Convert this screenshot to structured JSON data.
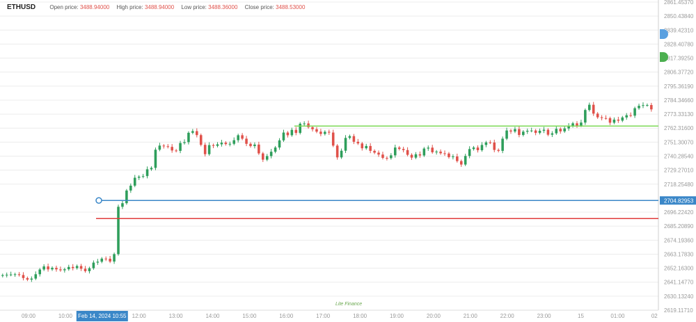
{
  "header": {
    "symbol": "ETHUSD",
    "open_label": "Open price:",
    "open_value": "3488.94000",
    "high_label": "High price:",
    "high_value": "3488.94000",
    "low_label": "Low price:",
    "low_value": "3488.36000",
    "close_label": "Close price:",
    "close_value": "3488.53000"
  },
  "watermark": "Lite Finance",
  "colors": {
    "up": "#2e9e5b",
    "down": "#e0514a",
    "grid": "#ececec",
    "green_line": "#7ed957",
    "blue_line": "#3a87c8",
    "red_line": "#e03b3b",
    "price_tag": "#3a87c8",
    "time_tag": "#3a87c8"
  },
  "chart_data": {
    "type": "candlestick",
    "symbol": "ETHUSD",
    "y_ticks": [
      "2861.45370",
      "2850.43840",
      "2839.42310",
      "2828.40780",
      "2817.39250",
      "2806.37720",
      "2795.36190",
      "2784.34660",
      "2773.33130",
      "2762.31600",
      "2751.30070",
      "2740.28540",
      "2729.27010",
      "2718.25480",
      "2704.82953",
      "2696.22420",
      "2685.20890",
      "2674.19360",
      "2663.17830",
      "2652.16300",
      "2641.14770",
      "2630.13240",
      "2619.11710"
    ],
    "ylim": [
      2619.1171,
      2861.4537
    ],
    "x_ticks": [
      "09:00",
      "10:00",
      "Feb 14, 2024 10:55",
      "12:00",
      "13:00",
      "14:00",
      "15:00",
      "16:00",
      "17:00",
      "18:00",
      "19:00",
      "20:00",
      "21:00",
      "22:00",
      "23:00",
      "15",
      "01:00",
      "02"
    ],
    "highlighted_time": "Feb 14, 2024 10:55",
    "current_price": "2704.82953",
    "horizontal_lines": [
      {
        "color": "green",
        "price": 2763.0
      },
      {
        "color": "blue",
        "price": 2704.82953
      },
      {
        "color": "red",
        "price": 2690.7
      }
    ],
    "close_prices": [
      2646.5,
      2646.8,
      2647.0,
      2647.2,
      2646.6,
      2644.2,
      2643.0,
      2643.8,
      2647.2,
      2650.9,
      2653.3,
      2651.0,
      2652.2,
      2651.0,
      2650.3,
      2651.1,
      2652.9,
      2652.0,
      2653.6,
      2651.5,
      2649.6,
      2651.9,
      2656.3,
      2657.0,
      2659.4,
      2659.3,
      2657.1,
      2662.9,
      2699.9,
      2702.7,
      2712.6,
      2716.4,
      2722.6,
      2723.4,
      2723.9,
      2729.2,
      2730.3,
      2744.5,
      2747.7,
      2747.2,
      2746.7,
      2743.9,
      2743.6,
      2749.7,
      2750.4,
      2757.7,
      2759.0,
      2755.9,
      2748.3,
      2741.0,
      2748.1,
      2747.5,
      2748.7,
      2750.0,
      2748.9,
      2749.1,
      2751.9,
      2755.8,
      2753.1,
      2749.1,
      2747.3,
      2748.5,
      2741.6,
      2736.7,
      2739.5,
      2742.9,
      2746.2,
      2751.8,
      2757.9,
      2755.8,
      2760.0,
      2757.6,
      2764.8,
      2765.0,
      2762.1,
      2760.5,
      2758.6,
      2756.8,
      2758.5,
      2757.9,
      2747.7,
      2738.5,
      2743.7,
      2753.7,
      2755.1,
      2750.7,
      2749.4,
      2745.6,
      2747.4,
      2743.6,
      2742.2,
      2740.7,
      2738.1,
      2737.9,
      2740.1,
      2746.2,
      2745.1,
      2744.2,
      2740.5,
      2738.3,
      2740.9,
      2740.0,
      2745.4,
      2746.1,
      2742.5,
      2743.0,
      2741.7,
      2741.5,
      2738.7,
      2739.2,
      2735.6,
      2732.9,
      2739.6,
      2745.0,
      2746.2,
      2744.1,
      2748.2,
      2750.2,
      2750.1,
      2744.3,
      2743.6,
      2753.1,
      2759.5,
      2758.7,
      2760.6,
      2756.0,
      2758.6,
      2759.3,
      2759.5,
      2757.6,
      2759.3,
      2760.1,
      2756.2,
      2757.3,
      2760.8,
      2758.8,
      2761.1,
      2763.0,
      2765.1,
      2763.4,
      2765.7,
      2775.5,
      2779.6,
      2772.7,
      2769.8,
      2769.2,
      2769.1,
      2765.6,
      2768.0,
      2767.2,
      2769.7,
      2771.4,
      2771.1,
      2776.9,
      2778.8,
      2779.3,
      2779.4,
      2776.0
    ]
  }
}
